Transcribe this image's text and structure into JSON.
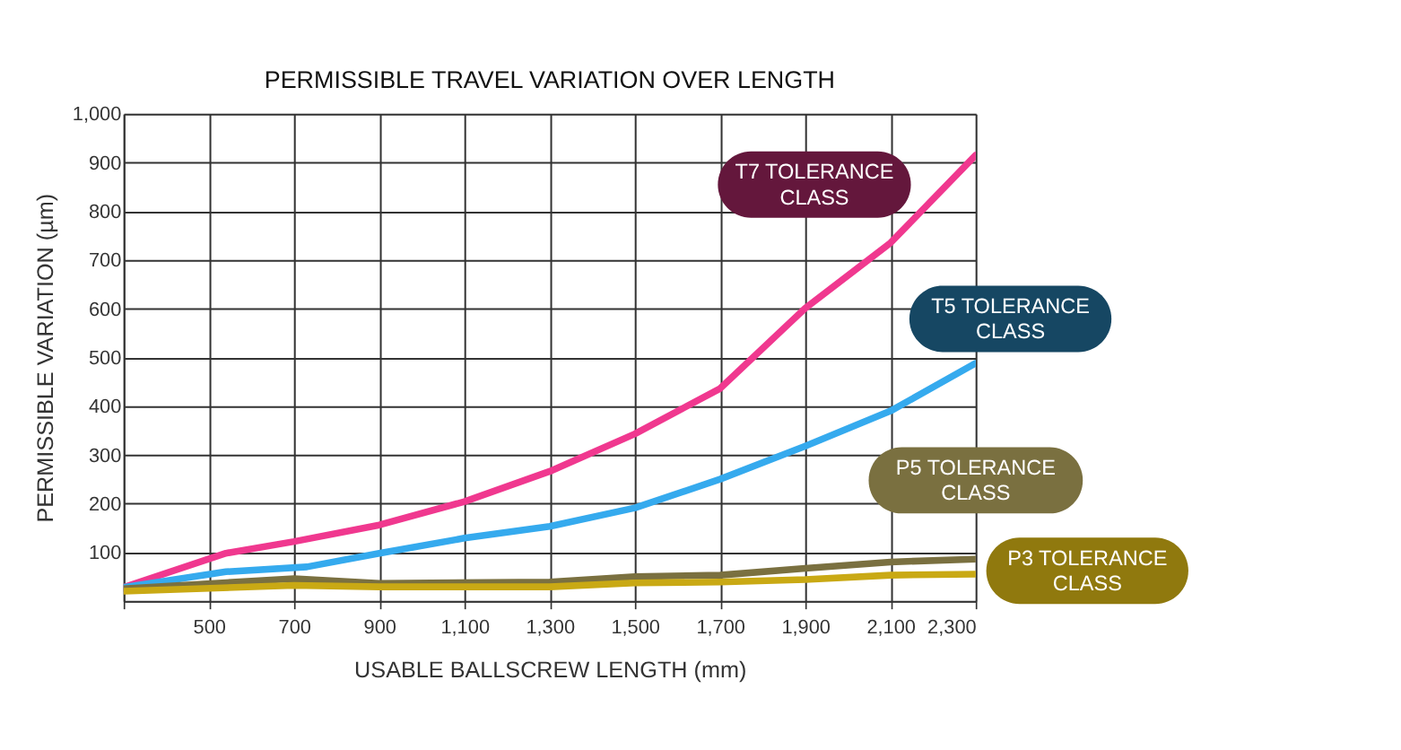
{
  "chart_data": {
    "type": "line",
    "title": "PERMISSIBLE TRAVEL VARIATION OVER LENGTH",
    "xlabel": "USABLE BALLSCREW LENGTH (mm)",
    "ylabel": "PERMISSIBLE VARIATION  (µm)",
    "xlim": [
      300,
      2300
    ],
    "xticks": [
      {
        "value": 300,
        "label": null
      },
      {
        "value": 500,
        "label": "500"
      },
      {
        "value": 700,
        "label": "700"
      },
      {
        "value": 900,
        "label": "900"
      },
      {
        "value": 1100,
        "label": "1,100"
      },
      {
        "value": 1300,
        "label": "1,300"
      },
      {
        "value": 1500,
        "label": "1,500"
      },
      {
        "value": 1700,
        "label": "1,700"
      },
      {
        "value": 1900,
        "label": "1,900"
      },
      {
        "value": 2100,
        "label": "2,100"
      },
      {
        "value": 2300,
        "label": "2,300"
      }
    ],
    "ylim": [
      0,
      1000
    ],
    "yticks": [
      {
        "value": 0,
        "label": null
      },
      100,
      200,
      300,
      400,
      500,
      600,
      700,
      800,
      900,
      {
        "value": 1000,
        "label": "1,000"
      }
    ],
    "grid": true,
    "legend": false,
    "marker": "none",
    "line_style": "solid",
    "series": [
      {
        "name": "T7 TOLERANCE CLASS",
        "color": "#f0388f",
        "x": [
          300,
          540,
          700,
          900,
          1100,
          1300,
          1500,
          1700,
          1900,
          2100,
          2300
        ],
        "values": [
          28,
          98,
          122,
          156,
          204,
          266,
          343,
          436,
          601,
          735,
          915
        ]
      },
      {
        "name": "T5 TOLERANCE CLASS",
        "color": "#35aaee",
        "x": [
          300,
          540,
          730,
          900,
          1100,
          1300,
          1500,
          1700,
          1900,
          2100,
          2300
        ],
        "values": [
          28,
          60,
          70,
          98,
          129,
          153,
          191,
          250,
          318,
          390,
          488
        ]
      },
      {
        "name": "P5 TOLERANCE CLASS",
        "color": "#7a7040",
        "x": [
          300,
          700,
          900,
          1300,
          1500,
          1700,
          1900,
          2100,
          2300
        ],
        "values": [
          25,
          46,
          36,
          39,
          50,
          53,
          67,
          80,
          86
        ]
      },
      {
        "name": "P3 TOLERANCE CLASS",
        "color": "#c9a914",
        "x": [
          300,
          700,
          900,
          1300,
          1500,
          1700,
          1900,
          2100,
          2300
        ],
        "values": [
          20,
          32,
          29,
          29,
          37,
          39,
          44,
          53,
          55
        ]
      }
    ]
  }
}
